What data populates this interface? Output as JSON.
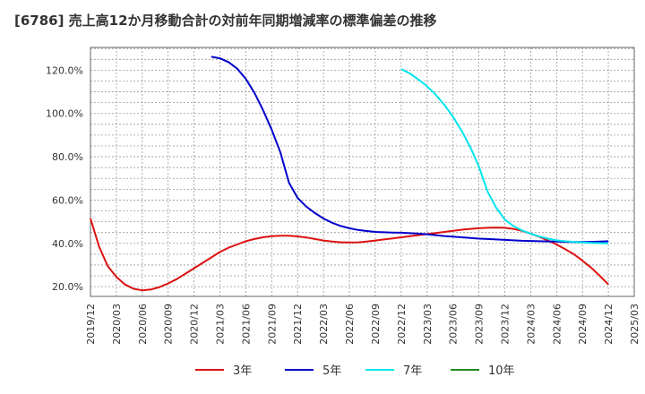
{
  "chart_data": {
    "type": "line",
    "title": "[6786]  売上高12か月移動合計の対前年同期増減率の標準偏差の推移",
    "xlabel": "",
    "ylabel": "",
    "x_ticks": [
      "2019/12",
      "2020/03",
      "2020/06",
      "2020/09",
      "2020/12",
      "2021/03",
      "2021/06",
      "2021/09",
      "2021/12",
      "2022/03",
      "2022/06",
      "2022/09",
      "2022/12",
      "2023/03",
      "2023/06",
      "2023/09",
      "2023/12",
      "2024/03",
      "2024/06",
      "2024/09",
      "2024/12",
      "2025/03"
    ],
    "y_ticks": [
      "20.0%",
      "40.0%",
      "60.0%",
      "80.0%",
      "100.0%",
      "120.0%"
    ],
    "ylim": [
      15.5,
      130.5
    ],
    "xlim": [
      "2019/12",
      "2025/03"
    ],
    "grid": true,
    "legend_position": "bottom",
    "series": [
      {
        "name": "3年",
        "color": "#dd1111",
        "points": [
          [
            "2019/12",
            51.5
          ],
          [
            "2020/01",
            38.5
          ],
          [
            "2020/02",
            29.5
          ],
          [
            "2020/03",
            24.5
          ],
          [
            "2020/04",
            21
          ],
          [
            "2020/05",
            19
          ],
          [
            "2020/06",
            18.3
          ],
          [
            "2020/07",
            18.7
          ],
          [
            "2020/08",
            19.8
          ],
          [
            "2020/09",
            21.5
          ],
          [
            "2020/10",
            23.5
          ],
          [
            "2020/11",
            26
          ],
          [
            "2020/12",
            28.5
          ],
          [
            "2021/01",
            31
          ],
          [
            "2021/02",
            33.5
          ],
          [
            "2021/03",
            36
          ],
          [
            "2021/04",
            38
          ],
          [
            "2021/05",
            39.5
          ],
          [
            "2021/06",
            41
          ],
          [
            "2021/07",
            42
          ],
          [
            "2021/08",
            42.8
          ],
          [
            "2021/09",
            43.3
          ],
          [
            "2021/10",
            43.5
          ],
          [
            "2021/11",
            43.5
          ],
          [
            "2021/12",
            43.2
          ],
          [
            "2022/01",
            42.7
          ],
          [
            "2022/02",
            42
          ],
          [
            "2022/03",
            41.3
          ],
          [
            "2022/04",
            40.8
          ],
          [
            "2022/05",
            40.5
          ],
          [
            "2022/06",
            40.4
          ],
          [
            "2022/07",
            40.5
          ],
          [
            "2022/08",
            40.8
          ],
          [
            "2022/09",
            41.3
          ],
          [
            "2022/10",
            41.8
          ],
          [
            "2022/11",
            42.3
          ],
          [
            "2022/12",
            42.8
          ],
          [
            "2023/01",
            43.3
          ],
          [
            "2023/02",
            43.8
          ],
          [
            "2023/03",
            44.3
          ],
          [
            "2023/04",
            44.8
          ],
          [
            "2023/05",
            45.3
          ],
          [
            "2023/06",
            45.8
          ],
          [
            "2023/07",
            46.3
          ],
          [
            "2023/08",
            46.7
          ],
          [
            "2023/09",
            47
          ],
          [
            "2023/10",
            47.2
          ],
          [
            "2023/11",
            47.3
          ],
          [
            "2023/12",
            47.2
          ],
          [
            "2024/01",
            46.7
          ],
          [
            "2024/02",
            45.8
          ],
          [
            "2024/03",
            44.5
          ],
          [
            "2024/04",
            43
          ],
          [
            "2024/05",
            41.3
          ],
          [
            "2024/06",
            39.5
          ],
          [
            "2024/07",
            37.3
          ],
          [
            "2024/08",
            35
          ],
          [
            "2024/09",
            32
          ],
          [
            "2024/10",
            28.8
          ],
          [
            "2024/11",
            25
          ],
          [
            "2024/12",
            21
          ]
        ]
      },
      {
        "name": "5年",
        "color": "#0000cc",
        "points": [
          [
            "2021/02",
            126.2
          ],
          [
            "2021/03",
            125.5
          ],
          [
            "2021/04",
            123.7
          ],
          [
            "2021/05",
            120.7
          ],
          [
            "2021/06",
            116
          ],
          [
            "2021/07",
            109.5
          ],
          [
            "2021/08",
            101.5
          ],
          [
            "2021/09",
            92.5
          ],
          [
            "2021/10",
            82
          ],
          [
            "2021/11",
            68
          ],
          [
            "2021/12",
            61
          ],
          [
            "2022/01",
            57
          ],
          [
            "2022/02",
            54
          ],
          [
            "2022/03",
            51.5
          ],
          [
            "2022/04",
            49.5
          ],
          [
            "2022/05",
            48
          ],
          [
            "2022/06",
            47
          ],
          [
            "2022/07",
            46.2
          ],
          [
            "2022/08",
            45.7
          ],
          [
            "2022/09",
            45.3
          ],
          [
            "2022/10",
            45.1
          ],
          [
            "2022/11",
            45
          ],
          [
            "2022/12",
            44.9
          ],
          [
            "2023/01",
            44.7
          ],
          [
            "2023/02",
            44.5
          ],
          [
            "2023/03",
            44.2
          ],
          [
            "2023/04",
            43.8
          ],
          [
            "2023/05",
            43.4
          ],
          [
            "2023/06",
            43.1
          ],
          [
            "2023/07",
            42.8
          ],
          [
            "2023/08",
            42.5
          ],
          [
            "2023/09",
            42.2
          ],
          [
            "2023/10",
            42
          ],
          [
            "2023/11",
            41.8
          ],
          [
            "2023/12",
            41.6
          ],
          [
            "2024/01",
            41.4
          ],
          [
            "2024/02",
            41.2
          ],
          [
            "2024/03",
            41.1
          ],
          [
            "2024/04",
            41
          ],
          [
            "2024/05",
            40.9
          ],
          [
            "2024/06",
            40.8
          ],
          [
            "2024/07",
            40.7
          ],
          [
            "2024/08",
            40.6
          ],
          [
            "2024/09",
            40.6
          ],
          [
            "2024/10",
            40.7
          ],
          [
            "2024/11",
            40.8
          ],
          [
            "2024/12",
            41
          ]
        ]
      },
      {
        "name": "7年",
        "color": "#00e5ee",
        "points": [
          [
            "2022/12",
            120.5
          ],
          [
            "2023/01",
            118.5
          ],
          [
            "2023/02",
            115.7
          ],
          [
            "2023/03",
            112.5
          ],
          [
            "2023/04",
            108.7
          ],
          [
            "2023/05",
            104
          ],
          [
            "2023/06",
            98.5
          ],
          [
            "2023/07",
            92
          ],
          [
            "2023/08",
            84.5
          ],
          [
            "2023/09",
            75.5
          ],
          [
            "2023/10",
            64
          ],
          [
            "2023/11",
            56.5
          ],
          [
            "2023/12",
            51
          ],
          [
            "2024/01",
            48
          ],
          [
            "2024/02",
            46
          ],
          [
            "2024/03",
            44.5
          ],
          [
            "2024/04",
            43.2
          ],
          [
            "2024/05",
            42.2
          ],
          [
            "2024/06",
            41.4
          ],
          [
            "2024/07",
            41
          ],
          [
            "2024/08",
            40.7
          ],
          [
            "2024/09",
            40.4
          ],
          [
            "2024/10",
            40.2
          ],
          [
            "2024/11",
            40.1
          ],
          [
            "2024/12",
            40
          ]
        ]
      },
      {
        "name": "10年",
        "color": "#228b22",
        "points": []
      }
    ]
  }
}
